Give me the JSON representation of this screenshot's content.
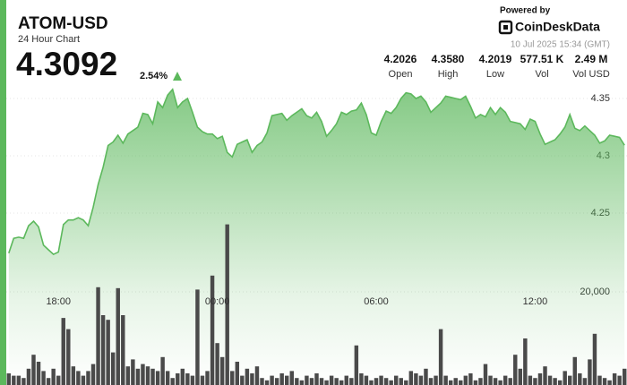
{
  "header": {
    "symbol": "ATOM-USD",
    "subtitle": "24 Hour Chart",
    "price": "4.3092",
    "change": "2.54%",
    "powered_by": "Powered by",
    "brand": "CoinDeskData",
    "timestamp": "10 Jul 2025 15:34 (GMT)"
  },
  "stats": [
    {
      "value": "4.2026",
      "label": "Open"
    },
    {
      "value": "4.3580",
      "label": "High"
    },
    {
      "value": "4.2019",
      "label": "Low"
    },
    {
      "value": "577.51 K",
      "label": "Vol"
    },
    {
      "value": "2.49 M",
      "label": "Vol USD"
    }
  ],
  "chart_data": {
    "type": "area",
    "categories": [
      null,
      null,
      null,
      null,
      null,
      null,
      null,
      null,
      null,
      null,
      "18:00",
      null,
      null,
      null,
      null,
      null,
      null,
      null,
      null,
      null,
      null,
      null,
      null,
      null,
      null,
      null,
      null,
      null,
      null,
      null,
      null,
      null,
      null,
      null,
      null,
      null,
      null,
      null,
      null,
      null,
      null,
      null,
      "00:00",
      null,
      null,
      null,
      null,
      null,
      null,
      null,
      null,
      null,
      null,
      null,
      null,
      null,
      null,
      null,
      null,
      null,
      null,
      null,
      null,
      null,
      null,
      null,
      null,
      null,
      null,
      null,
      null,
      null,
      null,
      null,
      "06:00",
      null,
      null,
      null,
      null,
      null,
      null,
      null,
      null,
      null,
      null,
      null,
      null,
      null,
      null,
      null,
      null,
      null,
      null,
      null,
      null,
      null,
      null,
      null,
      null,
      null,
      null,
      null,
      null,
      null,
      null,
      null,
      "12:00",
      null,
      null,
      null,
      null,
      null,
      null,
      null,
      null,
      null,
      null,
      null,
      null,
      null,
      null,
      null,
      null,
      null,
      null
    ],
    "ylim": [
      4.2,
      4.365
    ],
    "yticks": [
      4.25,
      4.3,
      {
        "value": 4.35,
        "label": "4.35"
      }
    ],
    "y2lim": [
      0,
      40000
    ],
    "y2ticks": [
      {
        "value": 20000,
        "label": "20,000"
      }
    ],
    "grid": true,
    "series": [
      {
        "type": "area",
        "color": "#5cb85c",
        "values": [
          4.215,
          4.228,
          4.229,
          4.228,
          4.239,
          4.243,
          4.238,
          4.222,
          4.218,
          4.214,
          4.216,
          4.24,
          4.244,
          4.244,
          4.246,
          4.244,
          4.239,
          4.255,
          4.275,
          4.29,
          4.309,
          4.312,
          4.318,
          4.311,
          4.319,
          4.322,
          4.325,
          4.337,
          4.336,
          4.328,
          4.347,
          4.342,
          4.353,
          4.358,
          4.342,
          4.347,
          4.35,
          4.338,
          4.325,
          4.321,
          4.319,
          4.319,
          4.315,
          4.317,
          4.303,
          4.299,
          4.31,
          4.312,
          4.314,
          4.303,
          4.309,
          4.312,
          4.32,
          4.335,
          4.336,
          4.337,
          4.331,
          4.335,
          4.338,
          4.341,
          4.335,
          4.333,
          4.338,
          4.33,
          4.317,
          4.322,
          4.328,
          4.338,
          4.336,
          4.339,
          4.34,
          4.346,
          4.336,
          4.32,
          4.318,
          4.33,
          4.339,
          4.337,
          4.342,
          4.35,
          4.355,
          4.354,
          4.35,
          4.352,
          4.347,
          4.338,
          4.342,
          4.346,
          4.352,
          4.351,
          4.35,
          4.349,
          4.352,
          4.343,
          4.333,
          4.336,
          4.334,
          4.342,
          4.336,
          4.342,
          4.338,
          4.33,
          4.329,
          4.328,
          4.323,
          4.332,
          4.33,
          4.319,
          4.31,
          4.312,
          4.314,
          4.319,
          4.325,
          4.336,
          4.324,
          4.322,
          4.326,
          4.322,
          4.318,
          4.311,
          4.313,
          4.318,
          4.317,
          4.316,
          4.3092
        ]
      },
      {
        "type": "bar",
        "axis": "y2",
        "color": "#4a4a4a",
        "values": [
          2500,
          2000,
          2000,
          1500,
          3500,
          6500,
          5000,
          3000,
          1500,
          3500,
          2000,
          14400,
          12000,
          4000,
          3000,
          2000,
          3000,
          4500,
          21000,
          15000,
          14000,
          7000,
          20800,
          15000,
          4000,
          5500,
          3500,
          4500,
          4000,
          3500,
          3000,
          6000,
          3000,
          1500,
          2500,
          3500,
          2500,
          2000,
          20500,
          2000,
          3000,
          23500,
          9000,
          6000,
          34500,
          3000,
          5000,
          2000,
          3500,
          2500,
          4000,
          1500,
          1000,
          2000,
          1500,
          2500,
          2000,
          3000,
          1500,
          1000,
          2000,
          1500,
          2500,
          1500,
          1000,
          2000,
          1500,
          1000,
          2000,
          1500,
          8500,
          2500,
          2000,
          1000,
          1500,
          2000,
          1500,
          1000,
          2000,
          1500,
          1000,
          3000,
          2500,
          2000,
          3500,
          1500,
          2000,
          12000,
          2000,
          1000,
          1500,
          1000,
          2000,
          2500,
          1000,
          1500,
          4500,
          2000,
          1500,
          1000,
          2000,
          1500,
          6500,
          3500,
          10000,
          2000,
          1500,
          2500,
          4000,
          2000,
          1500,
          1000,
          3000,
          2000,
          6000,
          2500,
          1500,
          5500,
          11000,
          2000,
          1500,
          1000,
          2500,
          2000,
          3500
        ]
      }
    ]
  }
}
